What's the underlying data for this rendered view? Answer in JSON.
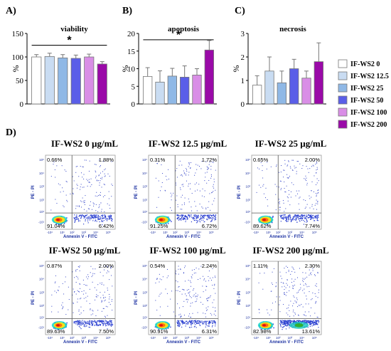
{
  "legend": {
    "placement": "right",
    "items": [
      {
        "label": "IF-WS2 0",
        "color": "#ffffff"
      },
      {
        "label": "IF-WS2 12.5",
        "color": "#c9dcf2"
      },
      {
        "label": "IF-WS2 25",
        "color": "#8fb8e6"
      },
      {
        "label": "IF-WS2 50",
        "color": "#5a5ee8"
      },
      {
        "label": "IF-WS2 100",
        "color": "#d98ee6"
      },
      {
        "label": "IF-WS2 200",
        "color": "#9a0aa8"
      }
    ]
  },
  "significance_mark": "*",
  "chart_data": [
    {
      "type": "bar",
      "panel_label": "A)",
      "title": "viability",
      "ylabel": "%",
      "ylim": [
        0,
        150
      ],
      "yticks": [
        0,
        50,
        100,
        150
      ],
      "categories": [
        "IF-WS2 0",
        "IF-WS2 12.5",
        "IF-WS2 25",
        "IF-WS2 50",
        "IF-WS2 100",
        "IF-WS2 200"
      ],
      "values": [
        100,
        101,
        98,
        97,
        100,
        85
      ],
      "errors": [
        5,
        7,
        7,
        7,
        6,
        5
      ],
      "significance": {
        "from": 0,
        "to": 5,
        "y": 125,
        "mark": "*"
      }
    },
    {
      "type": "bar",
      "panel_label": "B)",
      "title": "apoptosis",
      "ylabel": "%",
      "ylim": [
        0,
        20
      ],
      "yticks": [
        0,
        5,
        10,
        15,
        20
      ],
      "categories": [
        "IF-WS2 0",
        "IF-WS2 12.5",
        "IF-WS2 25",
        "IF-WS2 50",
        "IF-WS2 100",
        "IF-WS2 200"
      ],
      "values": [
        7.8,
        6.2,
        7.9,
        7.6,
        8.2,
        15.3
      ],
      "errors": [
        2.5,
        3.2,
        2.2,
        3.2,
        1.8,
        2.7
      ],
      "significance": {
        "from": 0,
        "to": 5,
        "y": 18.2,
        "mark": "*"
      }
    },
    {
      "type": "bar",
      "panel_label": "C)",
      "title": "necrosis",
      "ylabel": "%",
      "ylim": [
        0,
        3
      ],
      "yticks": [
        0,
        1,
        2,
        3
      ],
      "categories": [
        "IF-WS2 0",
        "IF-WS2 12.5",
        "IF-WS2 25",
        "IF-WS2 50",
        "IF-WS2 100",
        "IF-WS2 200"
      ],
      "values": [
        0.8,
        1.4,
        0.9,
        1.5,
        1.1,
        1.8
      ],
      "errors": [
        0.4,
        0.6,
        0.5,
        0.4,
        0.3,
        0.8
      ]
    }
  ],
  "flow": {
    "panel_label": "D)",
    "xlabel": "Annexin V - FITC",
    "ylabel": "PE - PI",
    "ticks": [
      "-10¹",
      "10¹",
      "10²",
      "10³",
      "10⁴",
      "10⁵"
    ],
    "plots": [
      {
        "title": "IF-WS2 0 µg/mL",
        "ul": "0.66%",
        "ur": "1.88%",
        "ll": "91.04%",
        "lr": "6.42%",
        "lower_right_percent": 6.42,
        "upper_right_percent": 1.88
      },
      {
        "title": "IF-WS2 12.5 µg/mL",
        "ul": "0.31%",
        "ur": "1.72%",
        "ll": "91.25%",
        "lr": "6.72%",
        "lower_right_percent": 6.72,
        "upper_right_percent": 1.72
      },
      {
        "title": "IF-WS2 25 µg/mL",
        "ul": "0.65%",
        "ur": "2.00%",
        "ll": "89.62%",
        "lr": "7.74%",
        "lower_right_percent": 7.74,
        "upper_right_percent": 2.0
      },
      {
        "title": "IF-WS2 50 µg/mL",
        "ul": "0.87%",
        "ur": "2.00%",
        "ll": "89.63%",
        "lr": "7.50%",
        "lower_right_percent": 7.5,
        "upper_right_percent": 2.0
      },
      {
        "title": "IF-WS2 100 µg/mL",
        "ul": "0.54%",
        "ur": "2.24%",
        "ll": "90.91%",
        "lr": "6.31%",
        "lower_right_percent": 6.31,
        "upper_right_percent": 2.24
      },
      {
        "title": "IF-WS2 200 µg/mL",
        "ul": "1.11%",
        "ur": "2.30%",
        "ll": "82.98%",
        "lr": "13.61%",
        "lower_right_percent": 13.61,
        "upper_right_percent": 2.3
      }
    ]
  }
}
